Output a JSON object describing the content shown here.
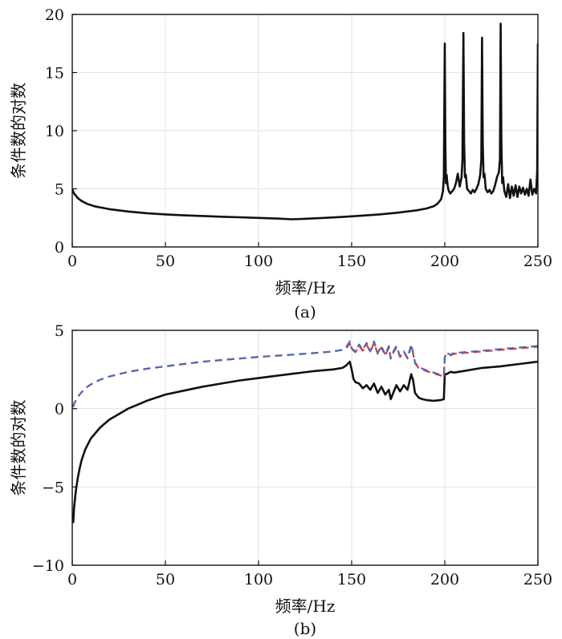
{
  "chart_data": [
    {
      "type": "line",
      "panel_label": "(a)",
      "xlabel": "频率/Hz",
      "ylabel": "条件数的对数",
      "xlim": [
        0,
        250
      ],
      "ylim": [
        0,
        20
      ],
      "xticks": [
        0,
        50,
        100,
        150,
        200,
        250
      ],
      "yticks": [
        0,
        5,
        10,
        15,
        20
      ],
      "grid": true,
      "series": [
        {
          "name": "condition-number",
          "color": "#111111",
          "x": [
            0,
            0.5,
            1,
            2,
            3,
            5,
            8,
            12,
            20,
            30,
            40,
            50,
            60,
            70,
            80,
            90,
            100,
            110,
            118,
            125,
            135,
            145,
            155,
            165,
            175,
            185,
            190,
            194,
            196,
            198,
            199,
            199.5,
            200,
            200.3,
            200.6,
            201,
            201.5,
            202,
            202.5,
            203,
            203.5,
            204,
            205,
            206,
            207,
            208,
            209,
            209.5,
            210,
            210.4,
            210.8,
            211.3,
            212,
            213,
            214,
            215,
            216,
            217,
            218,
            219,
            219.6,
            220,
            220.4,
            220.8,
            221.3,
            222,
            223,
            224,
            225,
            226,
            227,
            228,
            229,
            229.6,
            230,
            230.4,
            230.8,
            231.3,
            232,
            233,
            234,
            235,
            236,
            237,
            238,
            239,
            240,
            241,
            242,
            243,
            244,
            245,
            246,
            247,
            248,
            249,
            249.6,
            250
          ],
          "y": [
            5.0,
            4.75,
            4.6,
            4.4,
            4.2,
            3.95,
            3.7,
            3.5,
            3.25,
            3.05,
            2.9,
            2.8,
            2.72,
            2.66,
            2.6,
            2.55,
            2.5,
            2.44,
            2.38,
            2.42,
            2.5,
            2.58,
            2.68,
            2.8,
            2.95,
            3.15,
            3.3,
            3.5,
            3.7,
            4.1,
            4.8,
            6.0,
            17.5,
            9.0,
            5.5,
            6.2,
            5.3,
            4.9,
            4.7,
            4.6,
            4.7,
            4.8,
            5.0,
            5.5,
            6.3,
            5.2,
            6.0,
            7.5,
            18.4,
            9.0,
            6.0,
            6.2,
            5.0,
            4.8,
            4.6,
            4.9,
            4.7,
            5.0,
            5.4,
            6.2,
            7.5,
            18.0,
            9.0,
            6.0,
            6.3,
            5.0,
            4.7,
            4.9,
            4.6,
            4.8,
            5.3,
            6.0,
            6.4,
            7.5,
            19.2,
            9.0,
            5.5,
            6.0,
            4.8,
            4.3,
            5.4,
            4.2,
            5.2,
            4.4,
            5.3,
            4.3,
            5.2,
            4.6,
            5.1,
            4.5,
            5.0,
            4.4,
            5.8,
            4.5,
            5.0,
            4.6,
            6.5,
            17.5
          ]
        }
      ]
    },
    {
      "type": "line",
      "panel_label": "(b)",
      "xlabel": "频率/Hz",
      "ylabel": "条件数的对数",
      "xlim": [
        0,
        250
      ],
      "ylim": [
        -10,
        5
      ],
      "xticks": [
        0,
        50,
        100,
        150,
        200,
        250
      ],
      "yticks": [
        -10,
        -5,
        0,
        5
      ],
      "grid": true,
      "series": [
        {
          "name": "lower-curve",
          "color": "#111111",
          "style": "solid",
          "x": [
            0.5,
            1,
            2,
            3,
            4,
            5,
            7,
            10,
            15,
            20,
            30,
            40,
            50,
            60,
            70,
            80,
            90,
            100,
            110,
            120,
            130,
            140,
            145,
            147,
            149,
            150,
            151,
            152,
            154,
            156,
            158,
            160,
            162,
            164,
            166,
            168,
            170,
            171,
            172,
            174,
            176,
            178,
            180,
            182,
            183,
            184,
            186,
            188,
            190,
            194,
            198,
            199.5,
            200,
            201,
            203,
            205,
            210,
            220,
            230,
            240,
            250
          ],
          "y": [
            -7.3,
            -6.3,
            -5.2,
            -4.4,
            -3.8,
            -3.3,
            -2.6,
            -1.9,
            -1.2,
            -0.7,
            0.0,
            0.5,
            0.9,
            1.15,
            1.4,
            1.6,
            1.8,
            1.95,
            2.1,
            2.25,
            2.4,
            2.5,
            2.6,
            2.75,
            3.0,
            2.5,
            1.9,
            1.7,
            1.6,
            1.3,
            1.5,
            1.2,
            1.6,
            1.0,
            1.4,
            0.9,
            1.2,
            0.6,
            0.9,
            1.5,
            1.1,
            1.5,
            1.2,
            2.2,
            1.8,
            1.0,
            0.7,
            0.6,
            0.55,
            0.5,
            0.55,
            0.6,
            2.2,
            2.2,
            2.35,
            2.3,
            2.4,
            2.6,
            2.7,
            2.85,
            3.0
          ]
        },
        {
          "name": "red-dashed-curve",
          "color": "#e8352b",
          "style": "dashed",
          "x": [
            0.5,
            1,
            2,
            3,
            5,
            7,
            10,
            15,
            20,
            30,
            40,
            50,
            60,
            70,
            80,
            90,
            100,
            110,
            120,
            130,
            140,
            145,
            147,
            149,
            150,
            152,
            154,
            156,
            158,
            160,
            162,
            164,
            166,
            168,
            170,
            171,
            172,
            174,
            176,
            178,
            180,
            182,
            183,
            184,
            186,
            188,
            190,
            194,
            198,
            199.5,
            200,
            201,
            203,
            205,
            210,
            220,
            230,
            240,
            250
          ],
          "y": [
            0.1,
            0.3,
            0.55,
            0.75,
            1.05,
            1.3,
            1.55,
            1.85,
            2.05,
            2.35,
            2.55,
            2.7,
            2.85,
            3.0,
            3.1,
            3.2,
            3.3,
            3.38,
            3.46,
            3.55,
            3.65,
            3.75,
            3.85,
            4.15,
            3.8,
            3.6,
            4.0,
            3.7,
            4.1,
            3.6,
            4.2,
            3.5,
            3.9,
            3.4,
            3.9,
            3.2,
            3.5,
            3.9,
            3.3,
            3.6,
            3.2,
            4.0,
            3.5,
            2.9,
            2.6,
            2.5,
            2.4,
            2.25,
            2.1,
            2.05,
            3.3,
            3.5,
            3.4,
            3.5,
            3.55,
            3.65,
            3.75,
            3.85,
            3.95
          ]
        },
        {
          "name": "blue-dashed-curve",
          "color": "#4a6bb8",
          "style": "dashed",
          "x": [
            0.5,
            1,
            2,
            3,
            5,
            7,
            10,
            15,
            20,
            30,
            40,
            50,
            60,
            70,
            80,
            90,
            100,
            110,
            120,
            130,
            140,
            145,
            147,
            149,
            150,
            152,
            154,
            156,
            158,
            160,
            162,
            164,
            166,
            168,
            170,
            171,
            172,
            174,
            176,
            178,
            180,
            182,
            183,
            184,
            186,
            188,
            190,
            194,
            198,
            199.5,
            200,
            201,
            203,
            205,
            210,
            220,
            230,
            240,
            250
          ],
          "y": [
            0.1,
            0.3,
            0.55,
            0.75,
            1.05,
            1.3,
            1.55,
            1.85,
            2.05,
            2.35,
            2.55,
            2.7,
            2.85,
            3.0,
            3.1,
            3.2,
            3.3,
            3.38,
            3.46,
            3.55,
            3.65,
            3.75,
            3.9,
            4.3,
            3.85,
            3.65,
            4.1,
            3.75,
            4.2,
            3.65,
            4.3,
            3.55,
            4.0,
            3.45,
            4.0,
            3.2,
            3.55,
            4.0,
            3.35,
            3.65,
            3.25,
            4.1,
            3.55,
            2.95,
            2.65,
            2.55,
            2.45,
            2.3,
            2.15,
            2.1,
            3.35,
            3.55,
            3.45,
            3.55,
            3.6,
            3.7,
            3.8,
            3.9,
            4.0
          ]
        }
      ]
    }
  ]
}
